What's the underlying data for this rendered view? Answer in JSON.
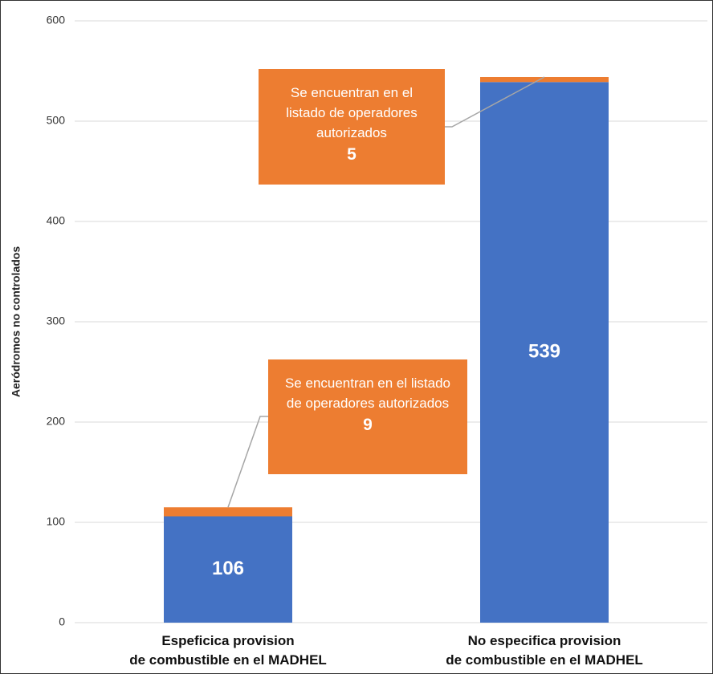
{
  "chart_data": {
    "type": "stacked-bar",
    "y_axis_label": "Aeródromos no controlados",
    "categories": [
      "Espeficica provision\nde combustible en el MADHEL",
      "No especifica provision\nde combustible en el MADHEL"
    ],
    "series": [
      {
        "color": "#4472c4",
        "values": [
          106,
          539
        ]
      },
      {
        "name": "Se encuentran en el listado de operadores autorizados",
        "color": "#ed7d31",
        "values": [
          9,
          5
        ]
      }
    ],
    "ylim": [
      0,
      600
    ],
    "yticks": [
      0,
      100,
      200,
      300,
      400,
      500,
      600
    ],
    "grid": true
  }
}
